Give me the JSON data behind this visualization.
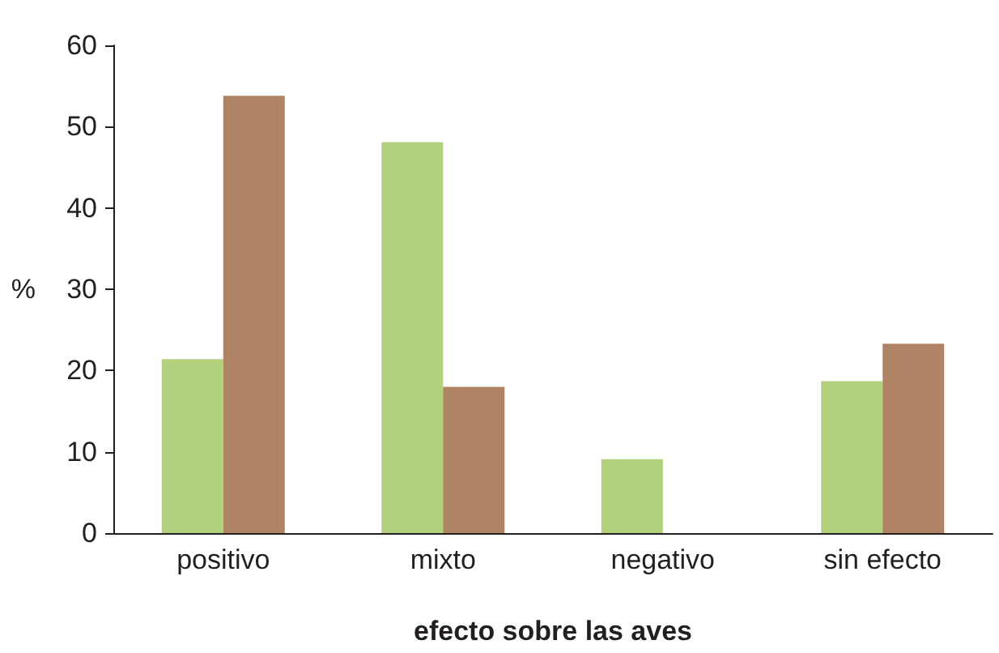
{
  "chart_data": {
    "type": "bar",
    "xlabel": "efecto sobre las aves",
    "ylabel": "%",
    "categories": [
      "positivo",
      "mixto",
      "negativo",
      "sin efecto"
    ],
    "series": [
      {
        "color": "#b3d07c",
        "values": [
          21.4,
          48.1,
          9.1,
          18.7
        ]
      },
      {
        "color": "#b08364",
        "values": [
          53.8,
          18.0,
          0,
          23.3
        ]
      }
    ],
    "ylim": [
      0,
      60
    ],
    "yticks": [
      0,
      10,
      20,
      30,
      40,
      50,
      60
    ],
    "grid": false
  }
}
